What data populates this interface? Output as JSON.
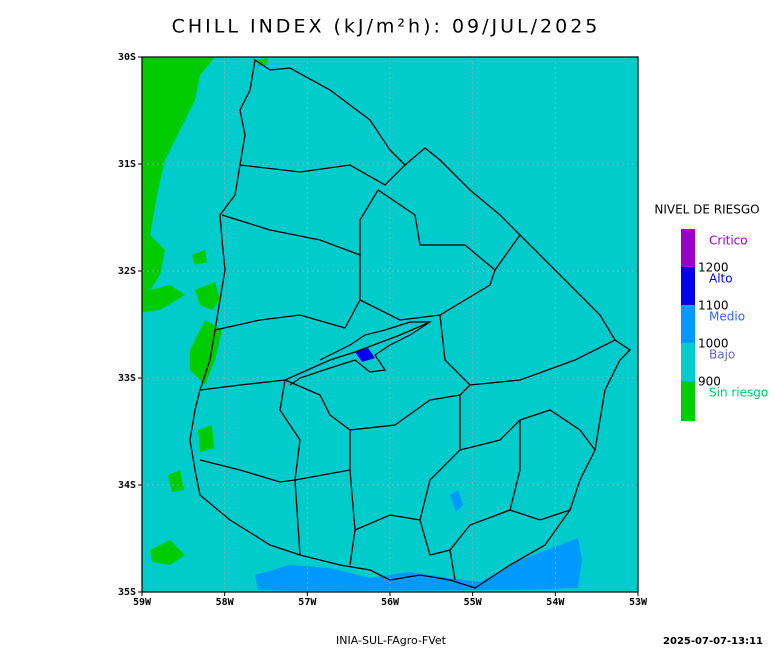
{
  "title": "CHILL INDEX (kJ/m²h): 09/JUL/2025",
  "map": {
    "lat_labels": [
      "30S",
      "31S",
      "32S",
      "33S",
      "34S",
      "35S"
    ],
    "lon_labels": [
      "59W",
      "58W",
      "57W",
      "56W",
      "55W",
      "54W",
      "53W"
    ]
  },
  "legend": {
    "title": "NIVEL DE RIESGO",
    "levels": [
      {
        "label": "Critico",
        "color": "#9900cc",
        "label_color": "#9900cc"
      },
      {
        "label": "Alto",
        "color": "#0000ee",
        "label_color": "#0000ee"
      },
      {
        "label": "Medio",
        "color": "#0099ff",
        "label_color": "#3366ff"
      },
      {
        "label": "Bajo",
        "color": "#00cccc",
        "label_color": "#6666cc"
      },
      {
        "label": "Sin riesgo",
        "color": "#00cc00",
        "label_color": "#00cc66"
      }
    ],
    "thresholds": [
      1200,
      1100,
      1000,
      900
    ]
  },
  "footer": {
    "source": "INIA-SUL-FAgro-FVet",
    "timestamp": "2025-07-07-13:11"
  }
}
